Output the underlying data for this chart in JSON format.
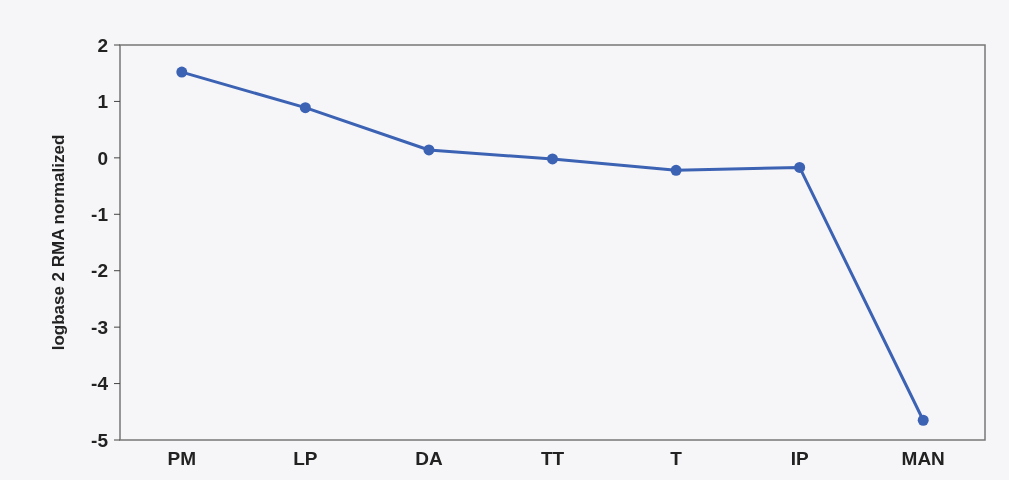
{
  "chart_data": {
    "type": "line",
    "ylabel": "logbase 2 RMA normalized",
    "categories": [
      "PM",
      "LP",
      "DA",
      "TT",
      "T",
      "IP",
      "MAN"
    ],
    "series": [
      {
        "color": "#3c62b4",
        "values": [
          1.52,
          0.89,
          0.14,
          -0.02,
          -0.22,
          -0.17,
          -4.65
        ]
      }
    ],
    "ylim": [
      -5,
      2
    ],
    "yticks": [
      -5,
      -4,
      -3,
      -2,
      -1,
      0,
      1,
      2
    ],
    "marker": "circle",
    "line_style": "solid",
    "grid": false
  }
}
